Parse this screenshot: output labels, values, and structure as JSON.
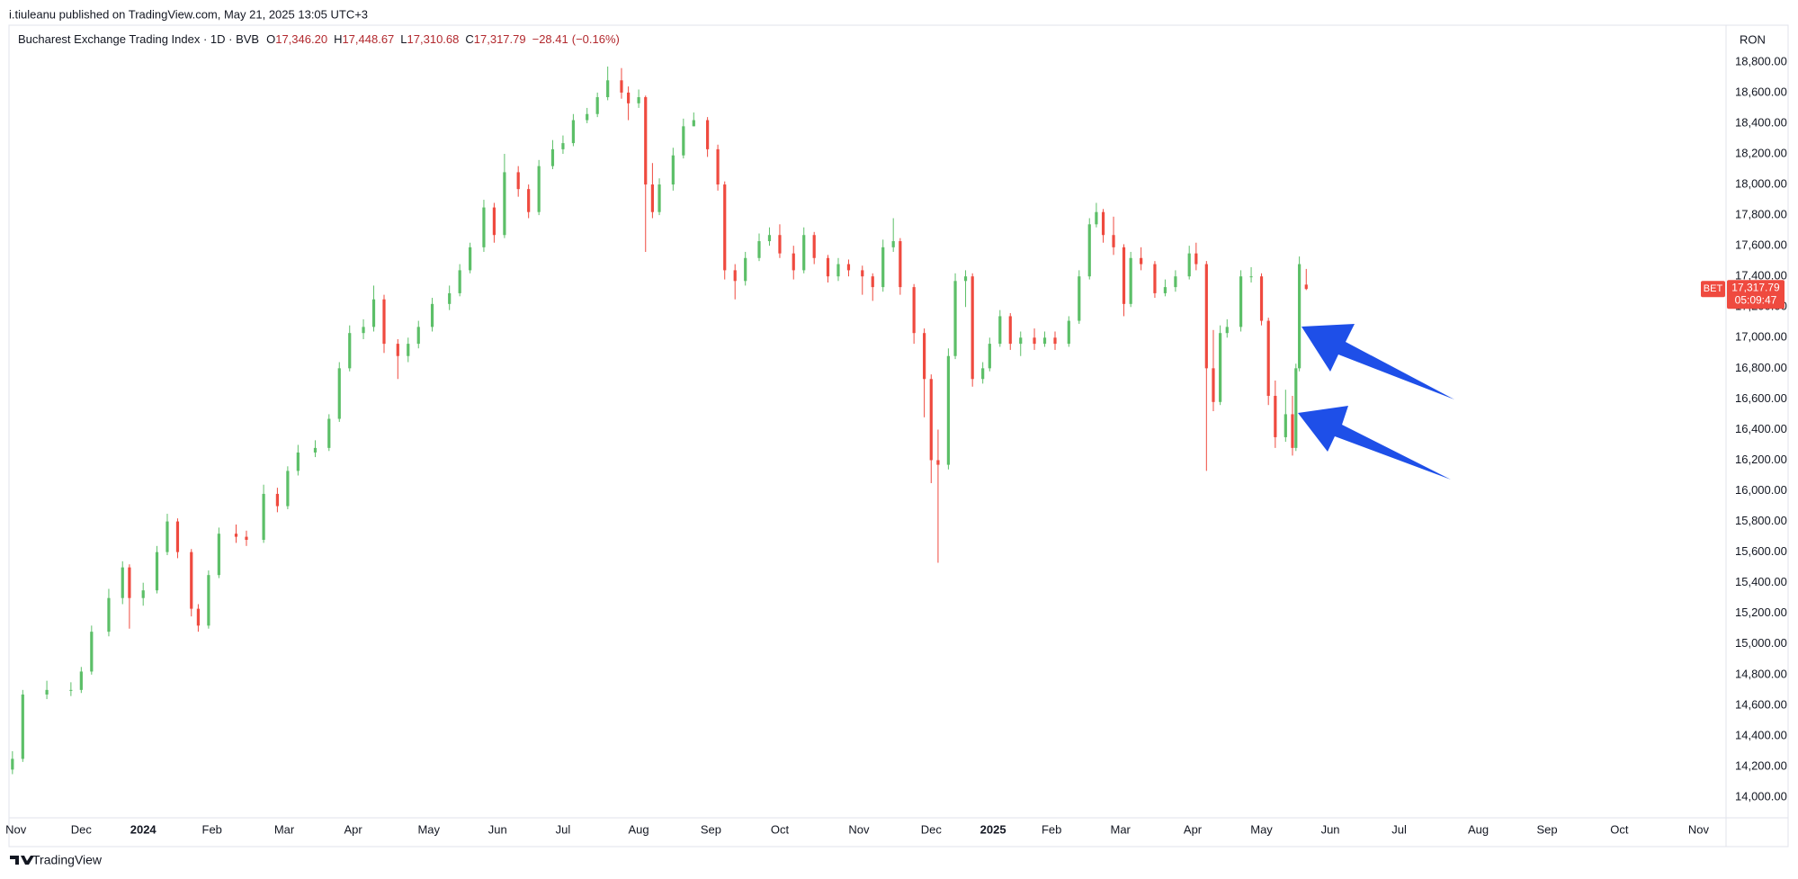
{
  "header": {
    "byline": "i.tiuleanu published on TradingView.com, May 21, 2025 13:05 UTC+3"
  },
  "footer": {
    "brand": "TradingView"
  },
  "chart_data": {
    "type": "candlestick",
    "title": "Bucharest Exchange Trading Index · 1D · BVB",
    "ohlc": [
      {
        "prefix": "O",
        "value": 17346.2,
        "label": "17,346.20"
      },
      {
        "prefix": "H",
        "value": 17448.67,
        "label": "17,448.67"
      },
      {
        "prefix": "L",
        "value": 17310.68,
        "label": "17,310.68"
      },
      {
        "prefix": "C",
        "value": 17317.79,
        "label": "17,317.79"
      }
    ],
    "change": {
      "value": -28.41,
      "label": "−28.41"
    },
    "change_percent": {
      "value": -0.16,
      "label": "(−0.16%)"
    },
    "currency": "RON",
    "up_color": "#5cbf68",
    "down_color": "#ef4a3f",
    "last_price": {
      "symbol": "BET",
      "value": 17317.79,
      "label": "17,317.79",
      "countdown": "05:09:47"
    },
    "grid": false,
    "xlim": [
      -1,
      498
    ],
    "xticks": [
      {
        "value": 1,
        "label": "Nov"
      },
      {
        "value": 20,
        "label": "Dec"
      },
      {
        "value": 38,
        "label": "2024"
      },
      {
        "value": 58,
        "label": "Feb"
      },
      {
        "value": 79,
        "label": "Mar"
      },
      {
        "value": 99,
        "label": "Apr"
      },
      {
        "value": 121,
        "label": "May"
      },
      {
        "value": 141,
        "label": "Jun"
      },
      {
        "value": 160,
        "label": "Jul"
      },
      {
        "value": 182,
        "label": "Aug"
      },
      {
        "value": 203,
        "label": "Sep"
      },
      {
        "value": 223,
        "label": "Oct"
      },
      {
        "value": 246,
        "label": "Nov"
      },
      {
        "value": 267,
        "label": "Dec"
      },
      {
        "value": 285,
        "label": "2025"
      },
      {
        "value": 302,
        "label": "Feb"
      },
      {
        "value": 322,
        "label": "Mar"
      },
      {
        "value": 343,
        "label": "Apr"
      },
      {
        "value": 363,
        "label": "May"
      },
      {
        "value": 383,
        "label": "Jun"
      },
      {
        "value": 403,
        "label": "Jul"
      },
      {
        "value": 426,
        "label": "Aug"
      },
      {
        "value": 446,
        "label": "Sep"
      },
      {
        "value": 467,
        "label": "Oct"
      },
      {
        "value": 490,
        "label": "Nov"
      }
    ],
    "ylim": [
      13865,
      19040
    ],
    "yticks": [
      {
        "value": 14000,
        "label": "14,000.00"
      },
      {
        "value": 14200,
        "label": "14,200.00"
      },
      {
        "value": 14400,
        "label": "14,400.00"
      },
      {
        "value": 14600,
        "label": "14,600.00"
      },
      {
        "value": 14800,
        "label": "14,800.00"
      },
      {
        "value": 15000,
        "label": "15,000.00"
      },
      {
        "value": 15200,
        "label": "15,200.00"
      },
      {
        "value": 15400,
        "label": "15,400.00"
      },
      {
        "value": 15600,
        "label": "15,600.00"
      },
      {
        "value": 15800,
        "label": "15,800.00"
      },
      {
        "value": 16000,
        "label": "16,000.00"
      },
      {
        "value": 16200,
        "label": "16,200.00"
      },
      {
        "value": 16400,
        "label": "16,400.00"
      },
      {
        "value": 16600,
        "label": "16,600.00"
      },
      {
        "value": 16800,
        "label": "16,800.00"
      },
      {
        "value": 17000,
        "label": "17,000.00"
      },
      {
        "value": 17200,
        "label": "17,200.00"
      },
      {
        "value": 17400,
        "label": "17,400.00"
      },
      {
        "value": 17600,
        "label": "17,600.00"
      },
      {
        "value": 17800,
        "label": "17,800.00"
      },
      {
        "value": 18000,
        "label": "18,000.00"
      },
      {
        "value": 18200,
        "label": "18,200.00"
      },
      {
        "value": 18400,
        "label": "18,400.00"
      },
      {
        "value": 18600,
        "label": "18,600.00"
      },
      {
        "value": 18800,
        "label": "18,800.00"
      }
    ],
    "candles": [
      {
        "x": 0,
        "open": 14180,
        "high": 14300,
        "low": 14150,
        "close": 14250
      },
      {
        "x": 3,
        "open": 14250,
        "high": 14700,
        "low": 14230,
        "close": 14670
      },
      {
        "x": 10,
        "open": 14670,
        "high": 14760,
        "low": 14640,
        "close": 14700
      },
      {
        "x": 17,
        "open": 14700,
        "high": 14750,
        "low": 14660,
        "close": 14700
      },
      {
        "x": 20,
        "open": 14700,
        "high": 14850,
        "low": 14680,
        "close": 14820
      },
      {
        "x": 23,
        "open": 14820,
        "high": 15120,
        "low": 14800,
        "close": 15080
      },
      {
        "x": 28,
        "open": 15080,
        "high": 15360,
        "low": 15050,
        "close": 15300
      },
      {
        "x": 32,
        "open": 15300,
        "high": 15540,
        "low": 15260,
        "close": 15500
      },
      {
        "x": 34,
        "open": 15500,
        "high": 15520,
        "low": 15100,
        "close": 15300
      },
      {
        "x": 38,
        "open": 15300,
        "high": 15400,
        "low": 15250,
        "close": 15350
      },
      {
        "x": 42,
        "open": 15350,
        "high": 15640,
        "low": 15330,
        "close": 15600
      },
      {
        "x": 45,
        "open": 15600,
        "high": 15850,
        "low": 15580,
        "close": 15800
      },
      {
        "x": 48,
        "open": 15800,
        "high": 15820,
        "low": 15560,
        "close": 15600
      },
      {
        "x": 52,
        "open": 15600,
        "high": 15620,
        "low": 15180,
        "close": 15230
      },
      {
        "x": 54,
        "open": 15230,
        "high": 15260,
        "low": 15080,
        "close": 15120
      },
      {
        "x": 57,
        "open": 15120,
        "high": 15480,
        "low": 15100,
        "close": 15450
      },
      {
        "x": 60,
        "open": 15450,
        "high": 15760,
        "low": 15430,
        "close": 15720
      },
      {
        "x": 65,
        "open": 15720,
        "high": 15780,
        "low": 15660,
        "close": 15700
      },
      {
        "x": 68,
        "open": 15700,
        "high": 15740,
        "low": 15640,
        "close": 15680
      },
      {
        "x": 73,
        "open": 15680,
        "high": 16040,
        "low": 15660,
        "close": 15980
      },
      {
        "x": 77,
        "open": 15980,
        "high": 16020,
        "low": 15860,
        "close": 15900
      },
      {
        "x": 80,
        "open": 15900,
        "high": 16160,
        "low": 15880,
        "close": 16130
      },
      {
        "x": 83,
        "open": 16130,
        "high": 16300,
        "low": 16100,
        "close": 16250
      },
      {
        "x": 88,
        "open": 16250,
        "high": 16330,
        "low": 16220,
        "close": 16280
      },
      {
        "x": 92,
        "open": 16280,
        "high": 16500,
        "low": 16260,
        "close": 16470
      },
      {
        "x": 95,
        "open": 16470,
        "high": 16840,
        "low": 16450,
        "close": 16800
      },
      {
        "x": 98,
        "open": 16800,
        "high": 17080,
        "low": 16780,
        "close": 17030
      },
      {
        "x": 102,
        "open": 17030,
        "high": 17120,
        "low": 16990,
        "close": 17070
      },
      {
        "x": 105,
        "open": 17070,
        "high": 17340,
        "low": 17040,
        "close": 17250
      },
      {
        "x": 108,
        "open": 17250,
        "high": 17280,
        "low": 16900,
        "close": 16960
      },
      {
        "x": 112,
        "open": 16960,
        "high": 16990,
        "low": 16730,
        "close": 16880
      },
      {
        "x": 115,
        "open": 16880,
        "high": 17000,
        "low": 16840,
        "close": 16960
      },
      {
        "x": 118,
        "open": 16960,
        "high": 17110,
        "low": 16930,
        "close": 17070
      },
      {
        "x": 122,
        "open": 17070,
        "high": 17260,
        "low": 17040,
        "close": 17220
      },
      {
        "x": 127,
        "open": 17220,
        "high": 17340,
        "low": 17180,
        "close": 17290
      },
      {
        "x": 130,
        "open": 17290,
        "high": 17480,
        "low": 17270,
        "close": 17440
      },
      {
        "x": 133,
        "open": 17440,
        "high": 17620,
        "low": 17420,
        "close": 17590
      },
      {
        "x": 137,
        "open": 17590,
        "high": 17900,
        "low": 17560,
        "close": 17850
      },
      {
        "x": 140,
        "open": 17850,
        "high": 17880,
        "low": 17620,
        "close": 17670
      },
      {
        "x": 143,
        "open": 17670,
        "high": 18200,
        "low": 17650,
        "close": 18080
      },
      {
        "x": 147,
        "open": 18080,
        "high": 18120,
        "low": 17920,
        "close": 17970
      },
      {
        "x": 150,
        "open": 17970,
        "high": 18000,
        "low": 17780,
        "close": 17820
      },
      {
        "x": 153,
        "open": 17820,
        "high": 18160,
        "low": 17800,
        "close": 18120
      },
      {
        "x": 157,
        "open": 18120,
        "high": 18290,
        "low": 18100,
        "close": 18230
      },
      {
        "x": 160,
        "open": 18230,
        "high": 18320,
        "low": 18200,
        "close": 18270
      },
      {
        "x": 163,
        "open": 18270,
        "high": 18460,
        "low": 18250,
        "close": 18420
      },
      {
        "x": 167,
        "open": 18420,
        "high": 18500,
        "low": 18400,
        "close": 18460
      },
      {
        "x": 170,
        "open": 18460,
        "high": 18600,
        "low": 18440,
        "close": 18570
      },
      {
        "x": 173,
        "open": 18570,
        "high": 18770,
        "low": 18550,
        "close": 18680
      },
      {
        "x": 177,
        "open": 18680,
        "high": 18760,
        "low": 18560,
        "close": 18600
      },
      {
        "x": 179,
        "open": 18600,
        "high": 18640,
        "low": 18420,
        "close": 18530
      },
      {
        "x": 182,
        "open": 18530,
        "high": 18620,
        "low": 18500,
        "close": 18570
      },
      {
        "x": 184,
        "open": 18570,
        "high": 18580,
        "low": 17560,
        "close": 18000
      },
      {
        "x": 186,
        "open": 18000,
        "high": 18140,
        "low": 17780,
        "close": 17820
      },
      {
        "x": 188,
        "open": 17820,
        "high": 18040,
        "low": 17800,
        "close": 18000
      },
      {
        "x": 192,
        "open": 18000,
        "high": 18240,
        "low": 17960,
        "close": 18190
      },
      {
        "x": 195,
        "open": 18190,
        "high": 18430,
        "low": 18170,
        "close": 18380
      },
      {
        "x": 198,
        "open": 18380,
        "high": 18470,
        "low": 18380,
        "close": 18420
      },
      {
        "x": 202,
        "open": 18420,
        "high": 18440,
        "low": 18180,
        "close": 18230
      },
      {
        "x": 205,
        "open": 18230,
        "high": 18260,
        "low": 17960,
        "close": 18000
      },
      {
        "x": 207,
        "open": 18000,
        "high": 18020,
        "low": 17380,
        "close": 17440
      },
      {
        "x": 210,
        "open": 17440,
        "high": 17480,
        "low": 17250,
        "close": 17370
      },
      {
        "x": 213,
        "open": 17370,
        "high": 17560,
        "low": 17340,
        "close": 17520
      },
      {
        "x": 217,
        "open": 17520,
        "high": 17680,
        "low": 17500,
        "close": 17630
      },
      {
        "x": 220,
        "open": 17630,
        "high": 17720,
        "low": 17600,
        "close": 17670
      },
      {
        "x": 223,
        "open": 17670,
        "high": 17740,
        "low": 17520,
        "close": 17550
      },
      {
        "x": 227,
        "open": 17550,
        "high": 17600,
        "low": 17380,
        "close": 17440
      },
      {
        "x": 230,
        "open": 17440,
        "high": 17720,
        "low": 17420,
        "close": 17670
      },
      {
        "x": 233,
        "open": 17670,
        "high": 17690,
        "low": 17480,
        "close": 17520
      },
      {
        "x": 237,
        "open": 17520,
        "high": 17540,
        "low": 17360,
        "close": 17400
      },
      {
        "x": 240,
        "open": 17400,
        "high": 17520,
        "low": 17370,
        "close": 17480
      },
      {
        "x": 243,
        "open": 17480,
        "high": 17510,
        "low": 17400,
        "close": 17440
      },
      {
        "x": 247,
        "open": 17440,
        "high": 17470,
        "low": 17280,
        "close": 17400
      },
      {
        "x": 250,
        "open": 17400,
        "high": 17420,
        "low": 17240,
        "close": 17330
      },
      {
        "x": 253,
        "open": 17330,
        "high": 17640,
        "low": 17300,
        "close": 17590
      },
      {
        "x": 256,
        "open": 17590,
        "high": 17780,
        "low": 17560,
        "close": 17630
      },
      {
        "x": 258,
        "open": 17630,
        "high": 17650,
        "low": 17280,
        "close": 17330
      },
      {
        "x": 262,
        "open": 17330,
        "high": 17350,
        "low": 16960,
        "close": 17030
      },
      {
        "x": 265,
        "open": 17030,
        "high": 17060,
        "low": 16480,
        "close": 16730
      },
      {
        "x": 267,
        "open": 16730,
        "high": 16760,
        "low": 16050,
        "close": 16200
      },
      {
        "x": 269,
        "open": 16200,
        "high": 16400,
        "low": 15530,
        "close": 16170
      },
      {
        "x": 272,
        "open": 16170,
        "high": 16930,
        "low": 16140,
        "close": 16880
      },
      {
        "x": 274,
        "open": 16880,
        "high": 17420,
        "low": 16860,
        "close": 17370
      },
      {
        "x": 277,
        "open": 17370,
        "high": 17440,
        "low": 17200,
        "close": 17400
      },
      {
        "x": 279,
        "open": 17400,
        "high": 17420,
        "low": 16680,
        "close": 16730
      },
      {
        "x": 282,
        "open": 16730,
        "high": 16840,
        "low": 16700,
        "close": 16800
      },
      {
        "x": 284,
        "open": 16800,
        "high": 17000,
        "low": 16780,
        "close": 16960
      },
      {
        "x": 287,
        "open": 16960,
        "high": 17180,
        "low": 16940,
        "close": 17140
      },
      {
        "x": 290,
        "open": 17140,
        "high": 17160,
        "low": 16920,
        "close": 16960
      },
      {
        "x": 293,
        "open": 16960,
        "high": 17040,
        "low": 16880,
        "close": 17000
      },
      {
        "x": 297,
        "open": 17000,
        "high": 17060,
        "low": 16920,
        "close": 16960
      },
      {
        "x": 300,
        "open": 16960,
        "high": 17040,
        "low": 16940,
        "close": 17000
      },
      {
        "x": 303,
        "open": 17000,
        "high": 17040,
        "low": 16920,
        "close": 16960
      },
      {
        "x": 307,
        "open": 16960,
        "high": 17140,
        "low": 16940,
        "close": 17110
      },
      {
        "x": 310,
        "open": 17110,
        "high": 17440,
        "low": 17090,
        "close": 17400
      },
      {
        "x": 313,
        "open": 17400,
        "high": 17780,
        "low": 17380,
        "close": 17740
      },
      {
        "x": 315,
        "open": 17740,
        "high": 17880,
        "low": 17720,
        "close": 17820
      },
      {
        "x": 317,
        "open": 17820,
        "high": 17840,
        "low": 17620,
        "close": 17670
      },
      {
        "x": 320,
        "open": 17670,
        "high": 17790,
        "low": 17540,
        "close": 17590
      },
      {
        "x": 323,
        "open": 17590,
        "high": 17610,
        "low": 17140,
        "close": 17220
      },
      {
        "x": 325,
        "open": 17220,
        "high": 17560,
        "low": 17200,
        "close": 17520
      },
      {
        "x": 328,
        "open": 17520,
        "high": 17590,
        "low": 17440,
        "close": 17480
      },
      {
        "x": 332,
        "open": 17480,
        "high": 17500,
        "low": 17260,
        "close": 17290
      },
      {
        "x": 335,
        "open": 17290,
        "high": 17380,
        "low": 17270,
        "close": 17330
      },
      {
        "x": 338,
        "open": 17330,
        "high": 17440,
        "low": 17300,
        "close": 17400
      },
      {
        "x": 342,
        "open": 17400,
        "high": 17600,
        "low": 17380,
        "close": 17550
      },
      {
        "x": 344,
        "open": 17550,
        "high": 17620,
        "low": 17440,
        "close": 17480
      },
      {
        "x": 347,
        "open": 17480,
        "high": 17500,
        "low": 16130,
        "close": 16800
      },
      {
        "x": 349,
        "open": 16800,
        "high": 17050,
        "low": 16520,
        "close": 16580
      },
      {
        "x": 351,
        "open": 16580,
        "high": 17080,
        "low": 16560,
        "close": 17030
      },
      {
        "x": 353,
        "open": 17030,
        "high": 17120,
        "low": 17000,
        "close": 17070
      },
      {
        "x": 357,
        "open": 17070,
        "high": 17440,
        "low": 17040,
        "close": 17400
      },
      {
        "x": 360,
        "open": 17400,
        "high": 17460,
        "low": 17360,
        "close": 17400
      },
      {
        "x": 363,
        "open": 17400,
        "high": 17420,
        "low": 17080,
        "close": 17110
      },
      {
        "x": 365,
        "open": 17110,
        "high": 17130,
        "low": 16560,
        "close": 16620
      },
      {
        "x": 367,
        "open": 16620,
        "high": 16720,
        "low": 16280,
        "close": 16350
      },
      {
        "x": 370,
        "open": 16350,
        "high": 16660,
        "low": 16320,
        "close": 16500
      },
      {
        "x": 372,
        "open": 16500,
        "high": 16620,
        "low": 16230,
        "close": 16280
      },
      {
        "x": 373,
        "open": 16280,
        "high": 16830,
        "low": 16260,
        "close": 16800
      },
      {
        "x": 374,
        "open": 16800,
        "high": 17530,
        "low": 16780,
        "close": 17480
      },
      {
        "x": 376,
        "open": 17346.2,
        "high": 17448.67,
        "low": 17310.68,
        "close": 17317.79
      }
    ]
  }
}
